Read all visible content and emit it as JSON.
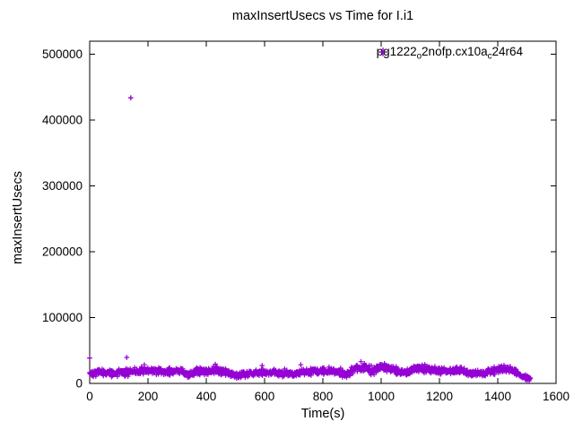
{
  "chart_data": {
    "type": "scatter",
    "title": "maxInsertUsecs vs Time for I.i1",
    "xlabel": "Time(s)",
    "ylabel": "maxInsertUsecs",
    "xlim": [
      0,
      1600
    ],
    "ylim": [
      0,
      520000
    ],
    "x_ticks": [
      0,
      200,
      400,
      600,
      800,
      1000,
      1200,
      1400,
      1600
    ],
    "y_ticks": [
      0,
      100000,
      200000,
      300000,
      400000,
      500000
    ],
    "grid": false,
    "background": "#ffffff",
    "axis_color": "#000000",
    "legend": {
      "position": "top-right",
      "marker": "plus-icon",
      "color": "#9400d3",
      "label_plain": "pg1222_o2nofp.cx10a_c24r64",
      "label_parts": [
        {
          "text": "pg1222",
          "sub": false
        },
        {
          "text": "o",
          "sub": true
        },
        {
          "text": "2nofp.cx10a",
          "sub": false
        },
        {
          "text": "c",
          "sub": true
        },
        {
          "text": "24r64",
          "sub": false
        }
      ]
    },
    "series": [
      {
        "name": "pg1222_o2nofp.cx10a_c24r64",
        "marker": "plus",
        "color": "#9400d3",
        "outliers": [
          [
            0,
            38500
          ],
          [
            127,
            39500
          ],
          [
            141,
            434000
          ]
        ],
        "band": {
          "t_start": 0,
          "t_end": 1512,
          "n_points": 1450,
          "seed": 42,
          "spike_prob": 0.02,
          "spike_max": 9000,
          "min_value": 1500,
          "profile": [
            [
              0,
              16000,
              6500
            ],
            [
              40,
              16800,
              6500
            ],
            [
              80,
              15200,
              6000
            ],
            [
              120,
              16500,
              7000
            ],
            [
              155,
              18200,
              7200
            ],
            [
              200,
              18500,
              7000
            ],
            [
              240,
              19000,
              6800
            ],
            [
              280,
              18000,
              6500
            ],
            [
              310,
              19800,
              6500
            ],
            [
              335,
              12500,
              5200
            ],
            [
              360,
              17800,
              6300
            ],
            [
              400,
              18800,
              6500
            ],
            [
              438,
              20500,
              7200
            ],
            [
              470,
              16800,
              6300
            ],
            [
              508,
              11800,
              5200
            ],
            [
              545,
              14800,
              5800
            ],
            [
              585,
              16200,
              5800
            ],
            [
              625,
              17200,
              5800
            ],
            [
              662,
              14200,
              5300
            ],
            [
              700,
              15200,
              5600
            ],
            [
              740,
              16800,
              6000
            ],
            [
              780,
              18800,
              6200
            ],
            [
              822,
              19500,
              6300
            ],
            [
              858,
              15500,
              5800
            ],
            [
              882,
              14000,
              5400
            ],
            [
              912,
              23000,
              7200
            ],
            [
              945,
              24500,
              7200
            ],
            [
              965,
              17000,
              6500
            ],
            [
              995,
              23500,
              6800
            ],
            [
              1025,
              24000,
              6800
            ],
            [
              1060,
              17500,
              6200
            ],
            [
              1090,
              16500,
              6000
            ],
            [
              1115,
              23500,
              6800
            ],
            [
              1150,
              21500,
              6800
            ],
            [
              1192,
              19800,
              6300
            ],
            [
              1232,
              18200,
              6200
            ],
            [
              1270,
              19300,
              6300
            ],
            [
              1308,
              16200,
              5800
            ],
            [
              1340,
              14800,
              5600
            ],
            [
              1382,
              18800,
              6200
            ],
            [
              1420,
              23000,
              6800
            ],
            [
              1448,
              19500,
              6300
            ],
            [
              1478,
              12500,
              4800
            ],
            [
              1500,
              9000,
              4200
            ],
            [
              1512,
              6500,
              3500
            ]
          ]
        }
      }
    ]
  }
}
